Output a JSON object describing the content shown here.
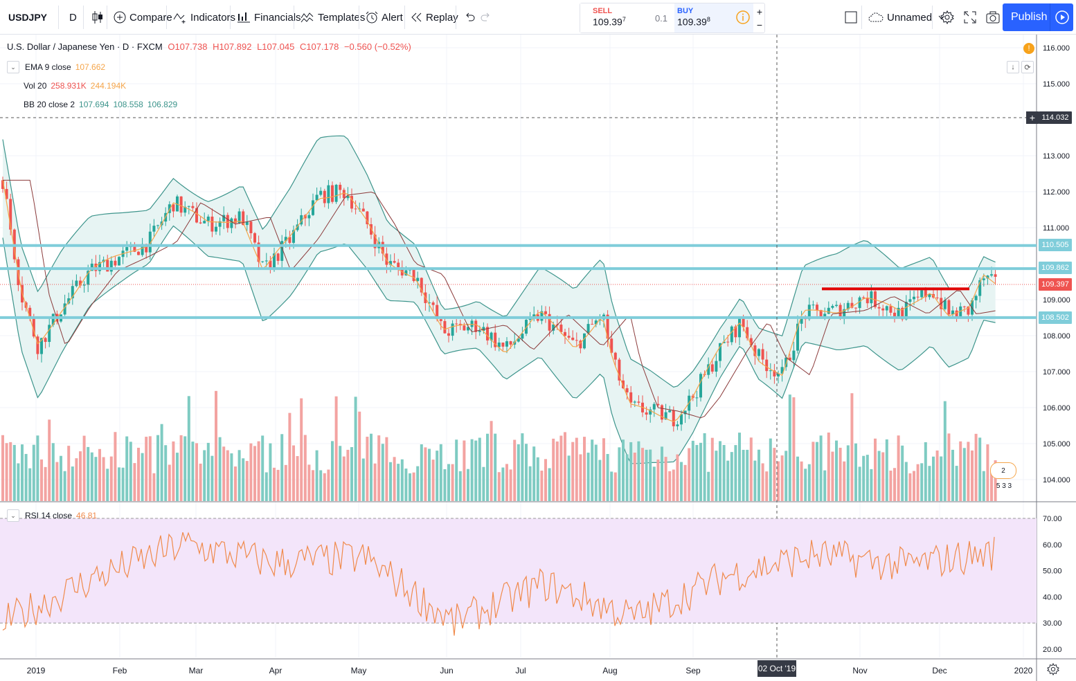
{
  "toolbar": {
    "symbol": "USDJPY",
    "interval": "D",
    "compare": "Compare",
    "indicators": "Indicators",
    "financials": "Financials",
    "templates": "Templates",
    "alert": "Alert",
    "replay": "Replay",
    "sell_label": "SELL",
    "sell_price": "109.39",
    "sell_sup": "7",
    "spread": "0.1",
    "buy_label": "BUY",
    "buy_price": "109.39",
    "buy_sup": "8",
    "plus": "+",
    "minus": "−",
    "layout_name": "Unnamed",
    "publish": "Publish"
  },
  "legend": {
    "title": "U.S. Dollar / Japanese Yen · D · FXCM",
    "open": "O107.738",
    "high": "H107.892",
    "low": "L107.045",
    "close": "C107.178",
    "change": "−0.560 (−0.52%)"
  },
  "indicators": {
    "ema": {
      "label": "EMA 9 close",
      "value": "107.662"
    },
    "vol": {
      "label": "Vol 20",
      "v1": "258.931K",
      "v2": "244.194K"
    },
    "bb": {
      "label": "BB 20 close 2",
      "v1": "107.694",
      "v2": "108.558",
      "v3": "106.829"
    },
    "rsi": {
      "label": "RSI 14 close",
      "value": "46.81"
    }
  },
  "price_axis": [
    "116.000",
    "115.000",
    "113.000",
    "112.000",
    "111.000",
    "109.000",
    "108.000",
    "107.000",
    "106.000",
    "105.000",
    "104.000"
  ],
  "price_tags": {
    "crosshair": "114.032",
    "h1": "110.505",
    "h2": "109.862",
    "last": "109.397",
    "h3": "108.502"
  },
  "rsi_axis": [
    "70.00",
    "60.00",
    "50.00",
    "40.00",
    "30.00",
    "20.00"
  ],
  "time_axis": [
    "2019",
    "Feb",
    "Mar",
    "Apr",
    "May",
    "Jun",
    "Jul",
    "Aug",
    "Sep",
    "Nov",
    "Dec",
    "2020"
  ],
  "crosshair_date": "02 Oct '19",
  "events": {
    "count": "2",
    "extra": "5 3 3"
  },
  "colors": {
    "up": "#26a69a",
    "down": "#ef5350",
    "hline": "#7fcdda",
    "resistance": "#e10000",
    "ema": "#f5a54a",
    "bb": "#3c948b",
    "rsi": "#f08a4b",
    "rsi_band": "#f3e5fa"
  },
  "chart_data": {
    "type": "candlestick",
    "symbol": "USDJPY",
    "interval": "D",
    "ylim": [
      103.5,
      116.5
    ],
    "x": [
      "2019-01",
      "2019-02",
      "2019-03",
      "2019-04",
      "2019-05",
      "2019-06",
      "2019-07",
      "2019-08",
      "2019-09",
      "2019-10",
      "2019-11",
      "2019-12"
    ],
    "series": [
      {
        "name": "EMA 9 close",
        "values": [
          109.4,
          109.9,
          111.4,
          111.4,
          110.7,
          108.6,
          107.9,
          106.4,
          107.6,
          108.3,
          108.9,
          109.4
        ]
      }
    ],
    "horizontal_levels": [
      110.505,
      109.862,
      108.502
    ],
    "resistance_line": 109.3,
    "rsi": {
      "label": "RSI 14 close",
      "ylim": [
        18,
        75
      ],
      "bands": [
        30,
        70
      ],
      "values": [
        30,
        47,
        60,
        53,
        55,
        30,
        45,
        32,
        48,
        56,
        52,
        57
      ]
    }
  }
}
